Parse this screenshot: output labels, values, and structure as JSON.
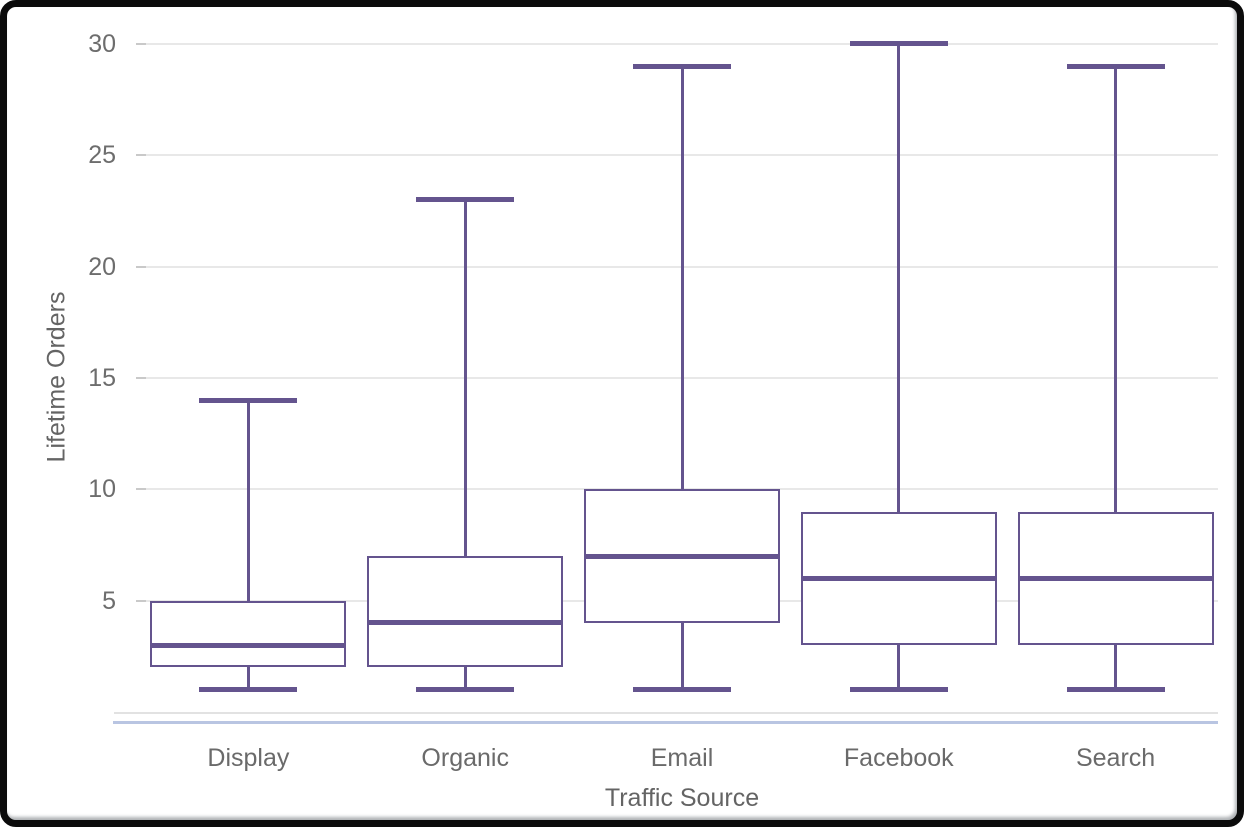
{
  "chart_data": {
    "type": "boxplot",
    "title": "",
    "xlabel": "Traffic Source",
    "ylabel": "Lifetime Orders",
    "categories": [
      "Display",
      "Organic",
      "Email",
      "Facebook",
      "Search"
    ],
    "boxes": [
      {
        "category": "Display",
        "min": 1,
        "q1": 2,
        "median": 3,
        "q3": 5,
        "max": 14
      },
      {
        "category": "Organic",
        "min": 1,
        "q1": 2,
        "median": 4,
        "q3": 7,
        "max": 23
      },
      {
        "category": "Email",
        "min": 1,
        "q1": 4,
        "median": 7,
        "q3": 10,
        "max": 29
      },
      {
        "category": "Facebook",
        "min": 1,
        "q1": 3,
        "median": 6,
        "q3": 9,
        "max": 30
      },
      {
        "category": "Search",
        "min": 1,
        "q1": 3,
        "median": 6,
        "q3": 9,
        "max": 29
      }
    ],
    "y_ticks": [
      5,
      10,
      15,
      20,
      25,
      30
    ],
    "ylim": [
      0,
      31
    ],
    "grid": "horizontal-major-only",
    "legend": "none",
    "colors": {
      "box_stroke": "#64548E",
      "median_line": "#64548E",
      "whisker": "#64548E",
      "box_fill": "#FFFFFF",
      "gridline": "#E8E8E8",
      "axis_line": "#E2E2E2",
      "baseline_accent": "#B9C5E2",
      "tick_text": "#6D6D6D",
      "axis_title_text": "#646464"
    }
  }
}
